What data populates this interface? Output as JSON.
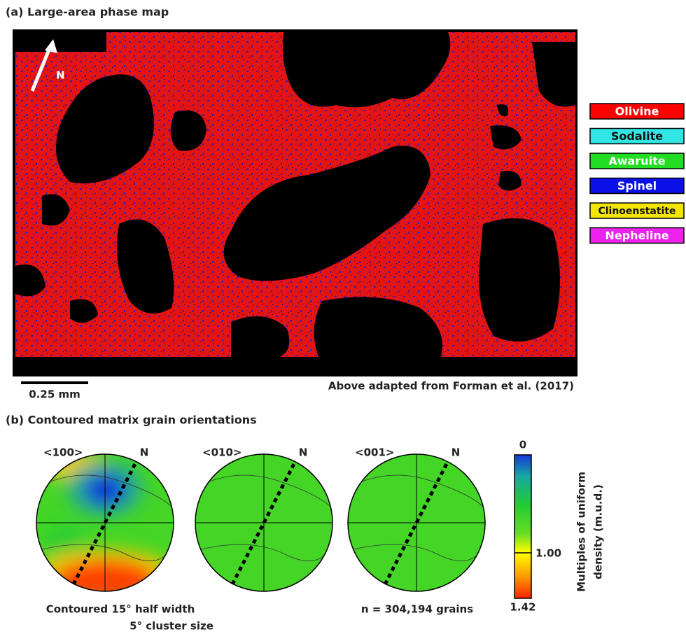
{
  "panel_a": {
    "title": "(a) Large-area phase map",
    "north_label": "N",
    "legend": [
      {
        "name": "Olivine",
        "color": "#ff0000"
      },
      {
        "name": "Sodalite",
        "color": "#33e6e6"
      },
      {
        "name": "Awaruite",
        "color": "#22dd22"
      },
      {
        "name": "Spinel",
        "color": "#0a10e6"
      },
      {
        "name": "Clinoenstatite",
        "color": "#f2e600"
      },
      {
        "name": "Nepheline",
        "color": "#ee22ee"
      }
    ],
    "scale_bar": "0.25 mm",
    "attribution": "Above adapted from Forman et al. (2017)"
  },
  "panel_b": {
    "title": "(b) Contoured matrix grain orientations",
    "pole_figures": [
      {
        "label": "<100>",
        "north_label": "N"
      },
      {
        "label": "<010>",
        "north_label": "N"
      },
      {
        "label": "<001>",
        "north_label": "N"
      }
    ],
    "colorbar": {
      "title_lines": [
        "Multiples of uniform",
        "density (m.u.d.)"
      ],
      "tick_labels": [
        "0",
        "1.00",
        "1.42"
      ]
    },
    "notes": [
      "Contoured 15° half width",
      "5° cluster size",
      "n = 304,194 grains"
    ]
  }
}
